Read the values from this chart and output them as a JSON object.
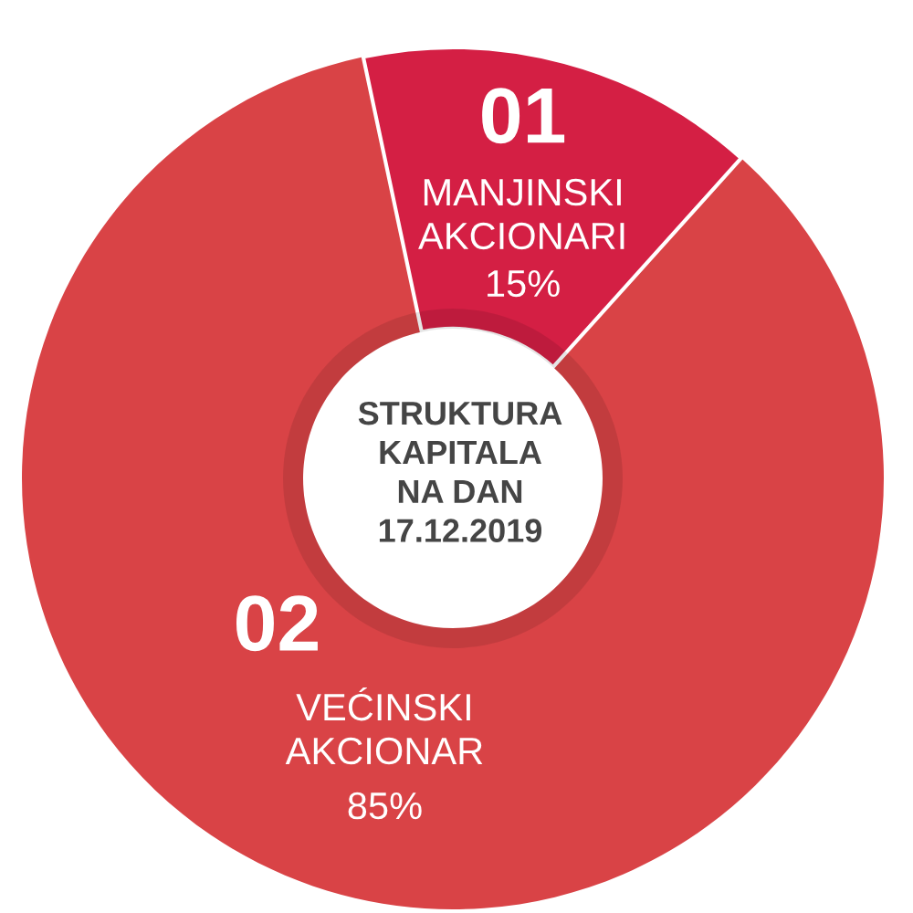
{
  "chart_data": {
    "type": "donut",
    "title": "STRUKTURA\nKAPITALA\nNA DAN\n17.12.2019",
    "categories": [
      "MANJINSKI\nAKCIONARI",
      "VEĆINSKI\nAKCIONAR"
    ],
    "values": [
      15,
      85
    ],
    "colors": [
      "#d41f44",
      "#d94346"
    ],
    "value_labels": [
      "15%",
      "85%"
    ],
    "annotations": [
      "01",
      "02"
    ]
  }
}
